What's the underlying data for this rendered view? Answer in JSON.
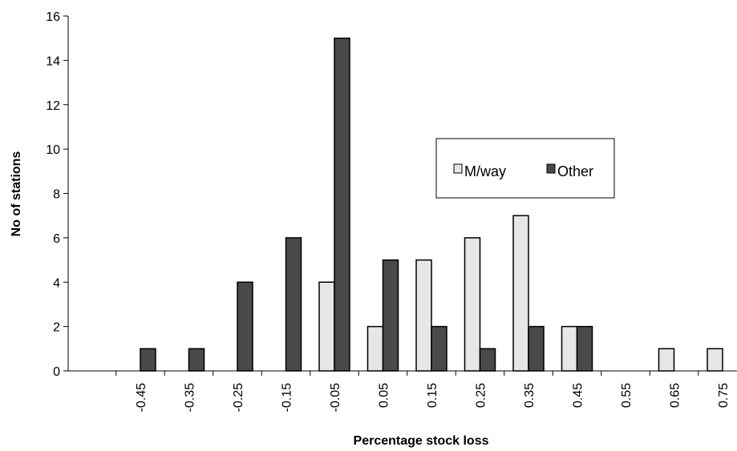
{
  "chart_data": {
    "type": "bar",
    "xlabel": "Percentage stock loss",
    "ylabel": "No of stations",
    "ylim": [
      0,
      16
    ],
    "yticks": [
      "0",
      "2",
      "4",
      "6",
      "8",
      "10",
      "12",
      "14",
      "16"
    ],
    "categories": [
      "-0.45",
      "-0.35",
      "-0.25",
      "-0.15",
      "-0.05",
      "0.05",
      "0.15",
      "0.25",
      "0.35",
      "0.45",
      "0.55",
      "0.65",
      "0.75"
    ],
    "series": [
      {
        "name": "M/way",
        "color": "#e6e6e6",
        "values": [
          0,
          0,
          0,
          0,
          4,
          2,
          5,
          6,
          7,
          2,
          0,
          1,
          1
        ]
      },
      {
        "name": "Other",
        "color": "#4a4a4a",
        "values": [
          1,
          1,
          4,
          6,
          15,
          5,
          2,
          1,
          2,
          2,
          0,
          0,
          0
        ]
      }
    ],
    "legend_position": "center-right",
    "grid": false
  }
}
